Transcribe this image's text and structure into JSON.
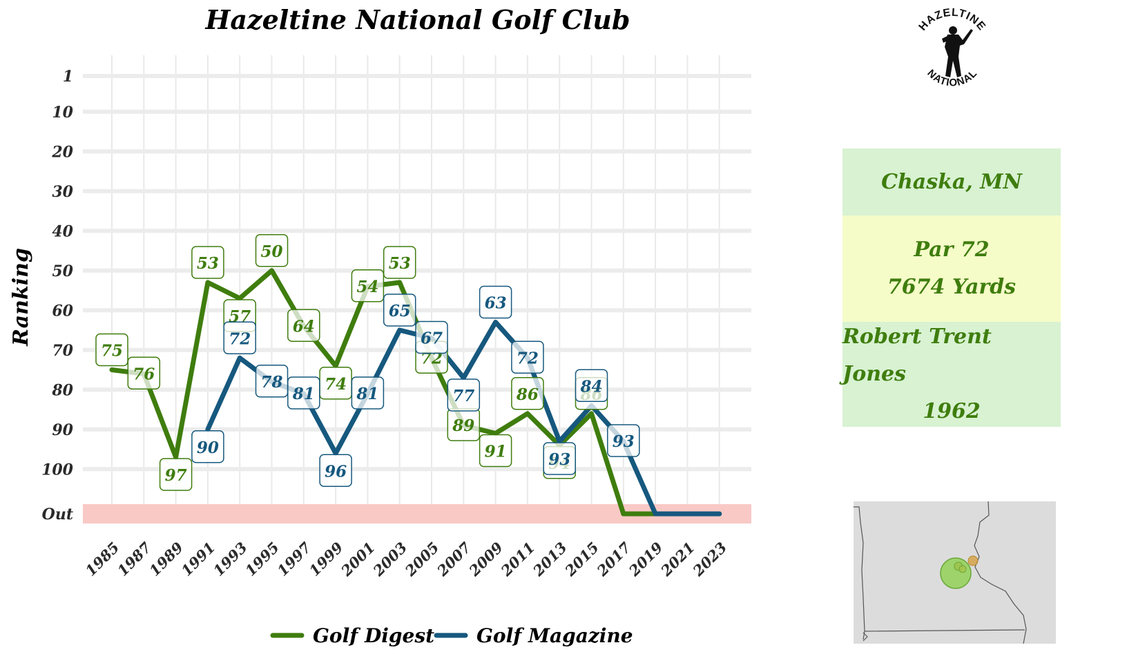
{
  "chart_data": {
    "type": "line",
    "title": "Hazeltine National Golf Club",
    "ylabel": "Ranking",
    "xlabel": "",
    "x": [
      1985,
      1987,
      1989,
      1991,
      1993,
      1995,
      1997,
      1999,
      2001,
      2003,
      2005,
      2007,
      2009,
      2011,
      2013,
      2015,
      2017,
      2019,
      2021,
      2023
    ],
    "x_tick_labels": [
      "1985",
      "1987",
      "1989",
      "1991",
      "1993",
      "1995",
      "1997",
      "1999",
      "2001",
      "2003",
      "2005",
      "2007",
      "2009",
      "2011",
      "2013",
      "2015",
      "2017",
      "2019",
      "2021",
      "2023"
    ],
    "y_tick_values": [
      1,
      10,
      20,
      30,
      40,
      50,
      60,
      70,
      80,
      90,
      100,
      "Out"
    ],
    "y_tick_labels": [
      "1",
      "10",
      "20",
      "30",
      "40",
      "50",
      "60",
      "70",
      "80",
      "90",
      "100",
      "Out"
    ],
    "ylim": [
      1,
      110
    ],
    "y_reversed": true,
    "out_band_color": "#f9c9c6",
    "grid": true,
    "legend_position": "bottom",
    "series": [
      {
        "name": "Golf Digest",
        "color": "#3f7d0e",
        "x": [
          1985,
          1987,
          1989,
          1991,
          1993,
          1995,
          1997,
          1999,
          2001,
          2003,
          2005,
          2007,
          2009,
          2011,
          2013,
          2015,
          2017,
          2019,
          2021,
          2023
        ],
        "values": [
          75,
          76,
          97,
          53,
          57,
          50,
          64,
          74,
          54,
          53,
          72,
          89,
          91,
          86,
          94,
          86,
          "Out",
          "Out",
          "Out",
          "Out"
        ],
        "labels": [
          "75",
          "76",
          "97",
          "53",
          "57",
          "50",
          "64",
          "74",
          "54",
          "53",
          "72",
          "89",
          "91",
          "86",
          "94",
          "86",
          "",
          "",
          "",
          ""
        ]
      },
      {
        "name": "Golf Magazine",
        "color": "#16587e",
        "x": [
          1991,
          1993,
          1995,
          1997,
          1999,
          2001,
          2003,
          2005,
          2007,
          2009,
          2011,
          2013,
          2015,
          2017,
          2019,
          2021,
          2023
        ],
        "values": [
          90,
          72,
          78,
          81,
          96,
          81,
          65,
          67,
          77,
          63,
          72,
          93,
          84,
          93,
          "Out",
          "Out",
          "Out"
        ],
        "labels": [
          "90",
          "72",
          "78",
          "81",
          "96",
          "81",
          "65",
          "67",
          "77",
          "63",
          "72",
          "93",
          "84",
          "93",
          "",
          "",
          ""
        ]
      }
    ]
  },
  "info": {
    "location": "Chaska, MN",
    "par": "Par 72",
    "yards": "7674 Yards",
    "designer": "Robert Trent Jones",
    "year": "1962",
    "text_color": "#3f7d0e"
  },
  "logo": {
    "top_text": "HAZELTINE",
    "bottom_text": "NATIONAL",
    "icon": "golfer-silhouette-icon"
  },
  "minimap": {
    "icon": "minnesota-map-icon",
    "background": "#dcdcdc",
    "marker_colors": [
      "#8fd14f",
      "#d4a042"
    ]
  }
}
